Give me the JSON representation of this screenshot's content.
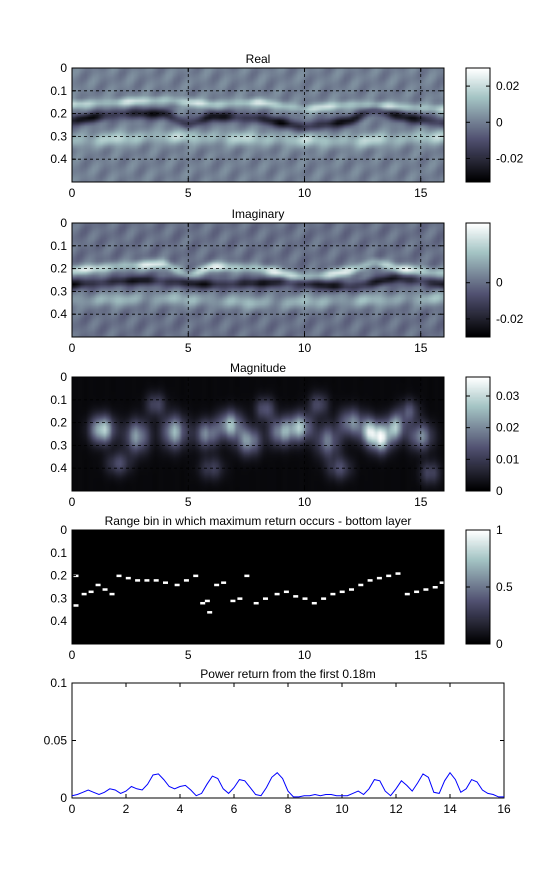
{
  "figure": {
    "background": "#ffffff",
    "axis_color": "#000000"
  },
  "chart_data": [
    {
      "id": "real",
      "type": "heatmap",
      "title": "Real",
      "colormap": "bone",
      "x_range": [
        0,
        16
      ],
      "y_range": [
        0,
        0.5
      ],
      "y_reversed": true,
      "xticks": [
        0,
        5,
        10,
        15
      ],
      "xtick_labels": [
        "0",
        "5",
        "10",
        "15"
      ],
      "yticks": [
        0,
        0.1,
        0.2,
        0.3,
        0.4
      ],
      "ytick_labels": [
        "0",
        "0.1",
        "0.2",
        "0.3",
        "0.4"
      ],
      "grid": true,
      "clim": [
        -0.033,
        0.03
      ],
      "colorbar_ticks": [
        0.02,
        0,
        -0.02
      ],
      "colorbar_labels": [
        "0.02",
        "0",
        "-0.02"
      ],
      "layers": [
        {
          "depth_at_x": [
            [
              0,
              0.23
            ],
            [
              2,
              0.2
            ],
            [
              4,
              0.2
            ],
            [
              5,
              0.25
            ],
            [
              6,
              0.21
            ],
            [
              8,
              0.22
            ],
            [
              10,
              0.26
            ],
            [
              12,
              0.23
            ],
            [
              13,
              0.18
            ],
            [
              14,
              0.21
            ],
            [
              16,
              0.24
            ]
          ],
          "amplitude": -0.03,
          "width": 0.022
        },
        {
          "depth_at_x": [
            [
              0,
              0.16
            ],
            [
              2,
              0.15
            ],
            [
              4,
              0.14
            ],
            [
              6,
              0.16
            ],
            [
              8,
              0.15
            ],
            [
              10,
              0.18
            ],
            [
              12,
              0.16
            ],
            [
              14,
              0.17
            ],
            [
              16,
              0.18
            ]
          ],
          "amplitude": 0.022,
          "width": 0.018
        },
        {
          "depth_at_x": [
            [
              0,
              0.32
            ],
            [
              4,
              0.3
            ],
            [
              8,
              0.31
            ],
            [
              12,
              0.32
            ],
            [
              16,
              0.3
            ]
          ],
          "amplitude": 0.018,
          "width": 0.03
        }
      ]
    },
    {
      "id": "imaginary",
      "type": "heatmap",
      "title": "Imaginary",
      "colormap": "bone",
      "x_range": [
        0,
        16
      ],
      "y_range": [
        0,
        0.5
      ],
      "y_reversed": true,
      "xticks": [
        0,
        5,
        10,
        15
      ],
      "xtick_labels": [
        "0",
        "5",
        "10",
        "15"
      ],
      "yticks": [
        0,
        0.1,
        0.2,
        0.3,
        0.4
      ],
      "ytick_labels": [
        "0",
        "0.1",
        "0.2",
        "0.3",
        "0.4"
      ],
      "grid": true,
      "clim": [
        -0.03,
        0.033
      ],
      "colorbar_ticks": [
        0,
        -0.02
      ],
      "colorbar_labels": [
        "0",
        "-0.02"
      ],
      "layers": [
        {
          "depth_at_x": [
            [
              0,
              0.21
            ],
            [
              2,
              0.19
            ],
            [
              4,
              0.18
            ],
            [
              5,
              0.23
            ],
            [
              6,
              0.19
            ],
            [
              8,
              0.2
            ],
            [
              10,
              0.24
            ],
            [
              12,
              0.21
            ],
            [
              13,
              0.17
            ],
            [
              14,
              0.2
            ],
            [
              16,
              0.22
            ]
          ],
          "amplitude": 0.028,
          "width": 0.02
        },
        {
          "depth_at_x": [
            [
              0,
              0.27
            ],
            [
              3,
              0.25
            ],
            [
              6,
              0.27
            ],
            [
              9,
              0.26
            ],
            [
              12,
              0.28
            ],
            [
              14,
              0.24
            ],
            [
              16,
              0.27
            ]
          ],
          "amplitude": -0.026,
          "width": 0.02
        },
        {
          "depth_at_x": [
            [
              0,
              0.34
            ],
            [
              4,
              0.33
            ],
            [
              8,
              0.35
            ],
            [
              12,
              0.34
            ],
            [
              16,
              0.33
            ]
          ],
          "amplitude": 0.015,
          "width": 0.03
        }
      ]
    },
    {
      "id": "magnitude",
      "type": "heatmap",
      "title": "Magnitude",
      "colormap": "bone",
      "x_range": [
        0,
        16
      ],
      "y_range": [
        0,
        0.5
      ],
      "y_reversed": true,
      "xticks": [
        0,
        5,
        10,
        15
      ],
      "xtick_labels": [
        "0",
        "5",
        "10",
        "15"
      ],
      "yticks": [
        0,
        0.1,
        0.2,
        0.3,
        0.4
      ],
      "ytick_labels": [
        "0",
        "0.1",
        "0.2",
        "0.3",
        "0.4"
      ],
      "grid": true,
      "clim": [
        0,
        0.036
      ],
      "colorbar_ticks": [
        0.03,
        0.02,
        0.01,
        0
      ],
      "colorbar_labels": [
        "0.03",
        "0.02",
        "0.01",
        "0"
      ],
      "blobs": [
        [
          1.3,
          0.23,
          0.5,
          0.06,
          0.03
        ],
        [
          2.8,
          0.26,
          0.5,
          0.07,
          0.022
        ],
        [
          4.4,
          0.24,
          0.5,
          0.07,
          0.025
        ],
        [
          5.8,
          0.25,
          0.5,
          0.06,
          0.02
        ],
        [
          6.8,
          0.21,
          0.5,
          0.06,
          0.026
        ],
        [
          7.6,
          0.28,
          0.5,
          0.06,
          0.022
        ],
        [
          9.0,
          0.24,
          0.5,
          0.06,
          0.022
        ],
        [
          9.8,
          0.22,
          0.5,
          0.06,
          0.026
        ],
        [
          11.0,
          0.28,
          0.5,
          0.07,
          0.018
        ],
        [
          12.0,
          0.2,
          0.5,
          0.06,
          0.02
        ],
        [
          12.8,
          0.24,
          0.4,
          0.06,
          0.028
        ],
        [
          13.3,
          0.27,
          0.4,
          0.06,
          0.03
        ],
        [
          13.9,
          0.22,
          0.4,
          0.06,
          0.026
        ],
        [
          15.0,
          0.26,
          0.5,
          0.06,
          0.02
        ],
        [
          3.6,
          0.12,
          0.4,
          0.05,
          0.012
        ],
        [
          8.3,
          0.14,
          0.4,
          0.05,
          0.014
        ],
        [
          10.6,
          0.12,
          0.4,
          0.05,
          0.012
        ],
        [
          14.5,
          0.15,
          0.4,
          0.05,
          0.013
        ],
        [
          2.0,
          0.38,
          0.5,
          0.05,
          0.012
        ],
        [
          6.0,
          0.4,
          0.5,
          0.05,
          0.01
        ],
        [
          11.5,
          0.4,
          0.5,
          0.05,
          0.012
        ],
        [
          15.4,
          0.42,
          0.4,
          0.05,
          0.012
        ]
      ]
    },
    {
      "id": "range_bin",
      "type": "heatmap",
      "title": "Range bin in which maximum return occurs - bottom layer",
      "colormap": "bone",
      "x_range": [
        0,
        16
      ],
      "y_range": [
        0,
        0.5
      ],
      "y_reversed": true,
      "xticks": [
        0,
        5,
        10,
        15
      ],
      "xtick_labels": [
        "0",
        "5",
        "10",
        "15"
      ],
      "yticks": [
        0,
        0.1,
        0.2,
        0.3,
        0.4
      ],
      "ytick_labels": [
        "0",
        "0.1",
        "0.2",
        "0.3",
        "0.4"
      ],
      "grid": false,
      "clim": [
        0,
        1
      ],
      "colorbar_ticks": [
        1,
        0.5,
        0
      ],
      "colorbar_labels": [
        "1",
        "0.5",
        "0"
      ],
      "points": [
        [
          0.15,
          0.2
        ],
        [
          0.15,
          0.33
        ],
        [
          0.5,
          0.28
        ],
        [
          0.8,
          0.27
        ],
        [
          1.1,
          0.24
        ],
        [
          1.4,
          0.26
        ],
        [
          1.7,
          0.28
        ],
        [
          2.0,
          0.2
        ],
        [
          2.4,
          0.21
        ],
        [
          2.8,
          0.22
        ],
        [
          3.2,
          0.22
        ],
        [
          3.6,
          0.22
        ],
        [
          4.0,
          0.23
        ],
        [
          4.5,
          0.24
        ],
        [
          4.9,
          0.22
        ],
        [
          5.3,
          0.2
        ],
        [
          5.6,
          0.32
        ],
        [
          5.8,
          0.31
        ],
        [
          5.9,
          0.36
        ],
        [
          6.2,
          0.24
        ],
        [
          6.5,
          0.23
        ],
        [
          6.9,
          0.31
        ],
        [
          7.2,
          0.3
        ],
        [
          7.5,
          0.2
        ],
        [
          7.9,
          0.32
        ],
        [
          8.3,
          0.3
        ],
        [
          8.8,
          0.28
        ],
        [
          9.2,
          0.27
        ],
        [
          9.6,
          0.29
        ],
        [
          10.0,
          0.3
        ],
        [
          10.4,
          0.32
        ],
        [
          10.8,
          0.3
        ],
        [
          11.2,
          0.28
        ],
        [
          11.6,
          0.27
        ],
        [
          12.0,
          0.26
        ],
        [
          12.4,
          0.24
        ],
        [
          12.8,
          0.22
        ],
        [
          13.2,
          0.21
        ],
        [
          13.6,
          0.2
        ],
        [
          14.0,
          0.19
        ],
        [
          14.4,
          0.28
        ],
        [
          14.8,
          0.27
        ],
        [
          15.2,
          0.26
        ],
        [
          15.6,
          0.25
        ],
        [
          15.9,
          0.23
        ]
      ]
    },
    {
      "id": "power",
      "type": "line",
      "title": "Power return from the first 0.18m",
      "line_color": "#0000ff",
      "x_range": [
        0,
        16
      ],
      "y_range": [
        0,
        0.1
      ],
      "xticks": [
        0,
        2,
        4,
        6,
        8,
        10,
        12,
        14,
        16
      ],
      "xtick_labels": [
        "0",
        "2",
        "4",
        "6",
        "8",
        "10",
        "12",
        "14",
        "16"
      ],
      "yticks": [
        0,
        0.05,
        0.1
      ],
      "ytick_labels": [
        "0",
        "0.05",
        "0.1"
      ],
      "grid": false,
      "x": [
        0.0,
        0.2,
        0.4,
        0.6,
        0.8,
        1.0,
        1.2,
        1.4,
        1.6,
        1.8,
        2.0,
        2.2,
        2.4,
        2.6,
        2.8,
        3.0,
        3.2,
        3.4,
        3.6,
        3.8,
        4.0,
        4.2,
        4.4,
        4.6,
        4.8,
        5.0,
        5.2,
        5.4,
        5.6,
        5.8,
        6.0,
        6.2,
        6.4,
        6.6,
        6.8,
        7.0,
        7.2,
        7.4,
        7.6,
        7.8,
        8.0,
        8.2,
        8.4,
        8.6,
        8.8,
        9.0,
        9.2,
        9.4,
        9.6,
        9.8,
        10.0,
        10.2,
        10.4,
        10.6,
        10.8,
        11.0,
        11.2,
        11.4,
        11.6,
        11.8,
        12.0,
        12.2,
        12.4,
        12.6,
        12.8,
        13.0,
        13.2,
        13.4,
        13.6,
        13.8,
        14.0,
        14.2,
        14.4,
        14.6,
        14.8,
        15.0,
        15.2,
        15.4,
        15.6,
        15.8,
        16.0
      ],
      "y": [
        0.002,
        0.003,
        0.005,
        0.007,
        0.005,
        0.003,
        0.005,
        0.008,
        0.007,
        0.004,
        0.006,
        0.01,
        0.008,
        0.007,
        0.012,
        0.02,
        0.021,
        0.016,
        0.01,
        0.008,
        0.01,
        0.011,
        0.007,
        0.002,
        0.004,
        0.012,
        0.019,
        0.017,
        0.008,
        0.004,
        0.009,
        0.016,
        0.015,
        0.009,
        0.003,
        0.002,
        0.009,
        0.018,
        0.022,
        0.017,
        0.006,
        0.001,
        0.001,
        0.002,
        0.002,
        0.003,
        0.002,
        0.003,
        0.003,
        0.002,
        0.002,
        0.002,
        0.004,
        0.006,
        0.003,
        0.008,
        0.016,
        0.015,
        0.006,
        0.002,
        0.008,
        0.015,
        0.011,
        0.006,
        0.013,
        0.021,
        0.018,
        0.005,
        0.004,
        0.015,
        0.022,
        0.016,
        0.005,
        0.008,
        0.016,
        0.014,
        0.007,
        0.004,
        0.003,
        0.001,
        0.001
      ]
    }
  ]
}
